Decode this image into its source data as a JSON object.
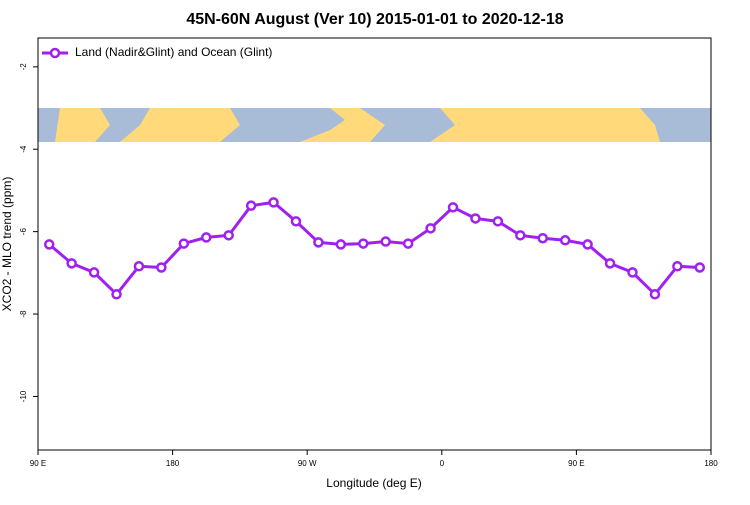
{
  "chart_data": {
    "type": "line",
    "title": "45N-60N August (Ver 10)   2015-01-01 to 2020-12-18",
    "x_label": "Longitude (deg E)",
    "y_label": "XCO2 - MLO trend (ppm)",
    "x": [
      97.5,
      112.5,
      127.5,
      142.5,
      157.5,
      172.5,
      187.5,
      202.5,
      217.5,
      232.5,
      247.5,
      262.5,
      277.5,
      292.5,
      307.5,
      322.5,
      337.5,
      352.5,
      367.5,
      382.5,
      397.5,
      412.5,
      427.5,
      442.5,
      457.5,
      472.5,
      487.5,
      502.5,
      517.5,
      532.5
    ],
    "series": [
      {
        "name": "Land (Nadir&Glint) and Ocean (Glint)",
        "color": "#a020f0",
        "values": [
          -6.31,
          -6.77,
          -6.99,
          -7.52,
          -6.84,
          -6.87,
          -6.29,
          -6.14,
          -6.09,
          -5.37,
          -5.29,
          -5.75,
          -6.26,
          -6.31,
          -6.29,
          -6.24,
          -6.29,
          -5.92,
          -5.41,
          -5.68,
          -5.75,
          -6.09,
          -6.16,
          -6.21,
          -6.31,
          -6.77,
          -6.99,
          -7.52,
          -6.84,
          -6.87
        ]
      }
    ],
    "xlim": [
      90,
      540
    ],
    "ylim": [
      -11.3,
      -1.3
    ],
    "xticks": [
      {
        "value": 90,
        "label": "90 E"
      },
      180,
      {
        "value": 270,
        "label": "90 W"
      },
      {
        "value": 360,
        "label": "0"
      },
      {
        "value": 450,
        "label": "90 E"
      },
      {
        "value": 540,
        "label": "180"
      }
    ],
    "yticks": [
      -10,
      -8,
      -6,
      -4,
      -2
    ],
    "legend": "top-left"
  }
}
